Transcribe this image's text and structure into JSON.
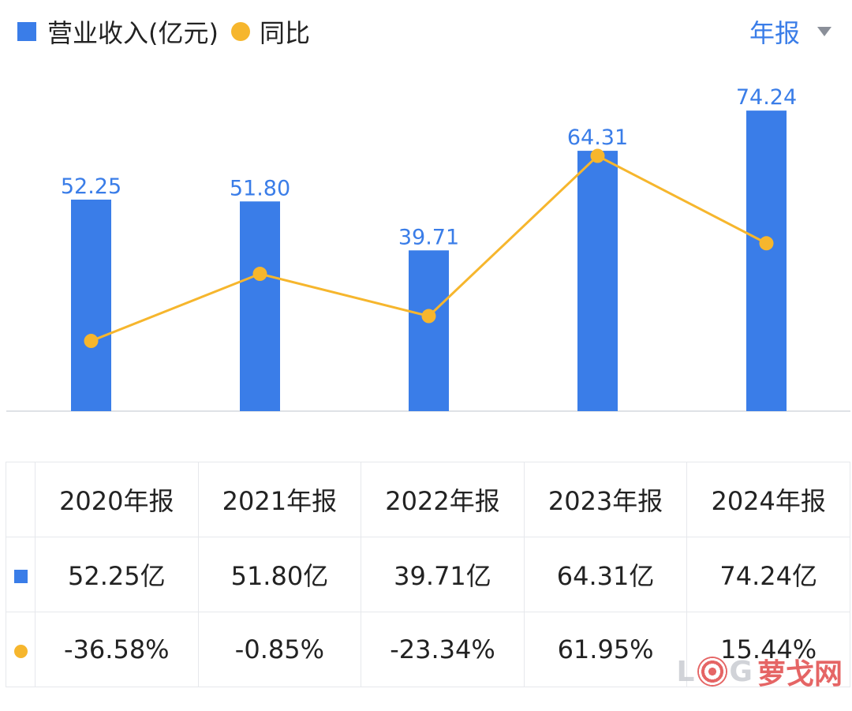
{
  "legend": {
    "revenue_label": "营业收入(亿元)",
    "yoy_label": "同比"
  },
  "period_select": {
    "value": "年报"
  },
  "colors": {
    "bar": "#3a7de8",
    "line": "#f6b62d",
    "negative": "#2aa36b",
    "positive": "#e8454a"
  },
  "chart_data": {
    "type": "bar",
    "categories": [
      "2020年报",
      "2021年报",
      "2022年报",
      "2023年报",
      "2024年报"
    ],
    "series": [
      {
        "name": "营业收入(亿元)",
        "type": "bar",
        "values": [
          52.25,
          51.8,
          39.71,
          64.31,
          74.24
        ],
        "labels": [
          "52.25",
          "51.80",
          "39.71",
          "64.31",
          "74.24"
        ]
      },
      {
        "name": "同比",
        "type": "line",
        "values": [
          -36.58,
          -0.85,
          -23.34,
          61.95,
          15.44
        ]
      }
    ],
    "grid": false,
    "legend_position": "top-left"
  },
  "table": {
    "headers": [
      "2020年报",
      "2021年报",
      "2022年报",
      "2023年报",
      "2024年报"
    ],
    "revenue": [
      "52.25亿",
      "51.80亿",
      "39.71亿",
      "64.31亿",
      "74.24亿"
    ],
    "yoy": [
      "-36.58%",
      "-0.85%",
      "-23.34%",
      "61.95%",
      "15.44%"
    ]
  },
  "watermark": {
    "letters": "L G",
    "text": "萝戈网"
  }
}
